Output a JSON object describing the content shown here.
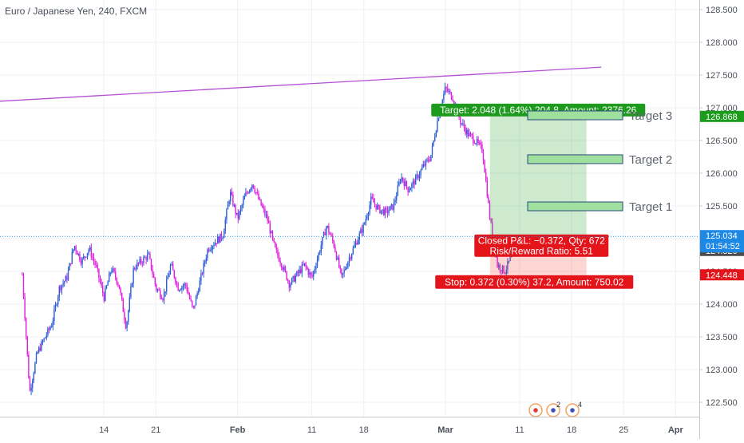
{
  "header": {
    "title": "Euro / Japanese Yen, 240, FXCM"
  },
  "chart_data": {
    "type": "candlestick",
    "title": "Euro / Japanese Yen, 240, FXCM",
    "ylim": [
      122.3,
      128.65
    ],
    "y_ticks": [
      "122.500",
      "123.000",
      "123.500",
      "124.000",
      "124.500",
      "125.000",
      "125.500",
      "126.000",
      "126.500",
      "127.000",
      "127.500",
      "128.000",
      "128.500"
    ],
    "y_tick_values": [
      122.5,
      123.0,
      123.5,
      124.0,
      124.5,
      125.0,
      125.5,
      126.0,
      126.5,
      127.0,
      127.5,
      128.0,
      128.5
    ],
    "x_ticks": [
      "14",
      "21",
      "Feb",
      "11",
      "18",
      "Mar",
      "11",
      "18",
      "25",
      "Apr"
    ],
    "x_tick_values": [
      "2019-01-14",
      "2019-01-21",
      "2019-02-01",
      "2019-02-11",
      "2019-02-18",
      "2019-03-01",
      "2019-03-11",
      "2019-03-18",
      "2019-03-25",
      "2019-04-01"
    ],
    "price_path": [
      [
        "2019-01-03",
        124.45
      ],
      [
        "2019-01-04",
        122.65
      ],
      [
        "2019-01-05",
        123.25
      ],
      [
        "2019-01-07",
        123.7
      ],
      [
        "2019-01-08",
        124.25
      ],
      [
        "2019-01-09",
        124.4
      ],
      [
        "2019-01-10",
        124.9
      ],
      [
        "2019-01-11",
        124.65
      ],
      [
        "2019-01-12",
        124.85
      ],
      [
        "2019-01-13",
        124.55
      ],
      [
        "2019-01-14",
        124.1
      ],
      [
        "2019-01-15",
        124.55
      ],
      [
        "2019-01-16",
        124.3
      ],
      [
        "2019-01-17",
        123.65
      ],
      [
        "2019-01-18",
        124.55
      ],
      [
        "2019-01-20",
        124.75
      ],
      [
        "2019-01-21",
        124.25
      ],
      [
        "2019-01-22",
        124.1
      ],
      [
        "2019-01-23",
        124.6
      ],
      [
        "2019-01-24",
        124.25
      ],
      [
        "2019-01-25",
        124.3
      ],
      [
        "2019-01-26",
        123.9
      ],
      [
        "2019-01-28",
        124.85
      ],
      [
        "2019-01-29",
        124.95
      ],
      [
        "2019-01-30",
        125.05
      ],
      [
        "2019-01-31",
        125.7
      ],
      [
        "2019-02-01",
        125.3
      ],
      [
        "2019-02-02",
        125.65
      ],
      [
        "2019-02-03",
        125.85
      ],
      [
        "2019-02-04",
        125.55
      ],
      [
        "2019-02-05",
        125.3
      ],
      [
        "2019-02-06",
        124.85
      ],
      [
        "2019-02-07",
        124.6
      ],
      [
        "2019-02-08",
        124.3
      ],
      [
        "2019-02-09",
        124.45
      ],
      [
        "2019-02-10",
        124.6
      ],
      [
        "2019-02-11",
        124.4
      ],
      [
        "2019-02-12",
        124.8
      ],
      [
        "2019-02-13",
        125.2
      ],
      [
        "2019-02-14",
        124.9
      ],
      [
        "2019-02-15",
        124.4
      ],
      [
        "2019-02-16",
        124.7
      ],
      [
        "2019-02-17",
        124.95
      ],
      [
        "2019-02-18",
        125.2
      ],
      [
        "2019-02-19",
        125.6
      ],
      [
        "2019-02-20",
        125.45
      ],
      [
        "2019-02-21",
        125.4
      ],
      [
        "2019-02-22",
        125.5
      ],
      [
        "2019-02-23",
        125.95
      ],
      [
        "2019-02-24",
        125.75
      ],
      [
        "2019-02-25",
        125.9
      ],
      [
        "2019-02-26",
        126.1
      ],
      [
        "2019-02-27",
        126.25
      ],
      [
        "2019-02-28",
        126.85
      ],
      [
        "2019-03-01",
        127.3
      ],
      [
        "2019-03-02",
        127.15
      ],
      [
        "2019-03-03",
        126.8
      ],
      [
        "2019-03-04",
        126.6
      ],
      [
        "2019-03-05",
        126.5
      ],
      [
        "2019-03-06",
        126.35
      ],
      [
        "2019-03-07",
        125.3
      ],
      [
        "2019-03-08",
        124.6
      ],
      [
        "2019-03-09",
        124.5
      ],
      [
        "2019-03-10",
        124.75
      ],
      [
        "2019-03-11",
        125.03
      ]
    ],
    "trendline": {
      "from": [
        "2018-12-31",
        127.1
      ],
      "to": [
        "2019-03-22",
        127.62
      ],
      "color": "#b44fd6"
    },
    "position": {
      "type": "long",
      "entry": 124.82,
      "target": 126.868,
      "stop": 124.448,
      "start": "2019-03-07",
      "end": "2019-03-20",
      "labels": {
        "target": "Target: 2.048 (1.64%) 204.8, Amount: 2376.26",
        "stop": "Stop: 0.372 (0.30%) 37.2, Amount: 750.02",
        "closed_line1": "Closed P&L: −0.372, Qty: 672",
        "closed_line2": "Risk/Reward Ratio: 5.51"
      }
    },
    "targets": [
      {
        "label": "Target 1",
        "value": 125.5
      },
      {
        "label": "Target 2",
        "value": 126.22
      },
      {
        "label": "Target 3",
        "value": 126.89
      }
    ],
    "current_price": {
      "value": 125.034,
      "label": "125.034",
      "countdown": "01:54:52",
      "color": "#1e88e5"
    },
    "price_tags": [
      {
        "label": "126.868",
        "value": 126.868,
        "color": "#1b9c1b"
      },
      {
        "label": "124.820",
        "value": 124.82,
        "color": "#4d4d4d"
      },
      {
        "label": "124.448",
        "value": 124.448,
        "color": "#e4141b"
      }
    ],
    "colors": {
      "up": "#2e5fd6",
      "down": "#e020e0",
      "grid": "#eef0f3",
      "axis_text": "#4a4f59"
    },
    "event_icons": [
      "event-marker-icon",
      "flag-icon",
      "flag-icon"
    ],
    "event_counts": [
      "2",
      "4"
    ],
    "grid": true
  }
}
